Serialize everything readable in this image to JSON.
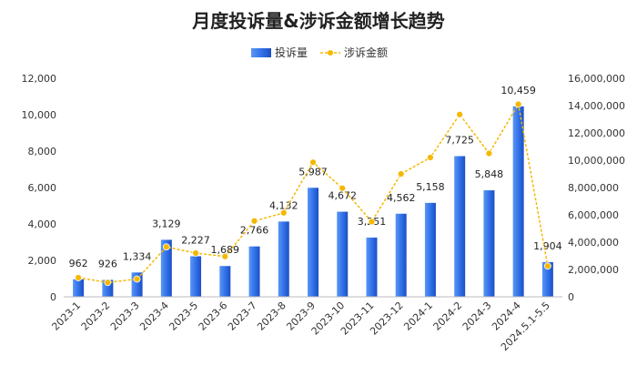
{
  "chart_data": {
    "type": "bar",
    "title": "月度投诉量&涉诉金额增长趋势",
    "legend_position": "top-center",
    "grid": false,
    "categories": [
      "2023-1",
      "2023-2",
      "2023-3",
      "2023-4",
      "2023-5",
      "2023-6",
      "2023-7",
      "2023-8",
      "2023-9",
      "2023-10",
      "2023-11",
      "2023-12",
      "2024-1",
      "2024-2",
      "2024-3",
      "2024-4",
      "2024.5.1-5.5"
    ],
    "series": [
      {
        "name": "投诉量",
        "type": "bar",
        "axis": "left",
        "color": "#2f6fe6",
        "values": [
          962,
          926,
          1334,
          3129,
          2227,
          1689,
          2766,
          4132,
          5987,
          4672,
          3251,
          4562,
          5158,
          7725,
          5848,
          10459,
          1904
        ],
        "labels": [
          "962",
          "926",
          "1,334",
          "3,129",
          "2,227",
          "1,689",
          "2,766",
          "4,132",
          "5,987",
          "4,672",
          "3,251",
          "4,562",
          "5,158",
          "7,725",
          "5,848",
          "10,459",
          "1,904"
        ]
      },
      {
        "name": "涉诉金额",
        "type": "line",
        "axis": "right",
        "color": "#f5b800",
        "line_style": "dashed",
        "values": [
          1400000,
          1050000,
          1300000,
          3650000,
          3200000,
          2950000,
          5550000,
          6150000,
          9850000,
          7950000,
          5500000,
          9000000,
          10200000,
          13350000,
          10500000,
          14100000,
          2250000
        ]
      }
    ],
    "y_left": {
      "ylim": [
        0,
        12000
      ],
      "ticks": [
        0,
        2000,
        4000,
        6000,
        8000,
        10000,
        12000
      ],
      "tick_labels": [
        "0",
        "2,000",
        "4,000",
        "6,000",
        "8,000",
        "10,000",
        "12,000"
      ]
    },
    "y_right": {
      "ylim": [
        0,
        16000000
      ],
      "ticks": [
        0,
        2000000,
        4000000,
        6000000,
        8000000,
        10000000,
        12000000,
        14000000,
        16000000
      ],
      "tick_labels": [
        "0",
        "2,000,000",
        "4,000,000",
        "6,000,000",
        "8,000,000",
        "10,000,000",
        "12,000,000",
        "14,000,000",
        "16,000,000"
      ]
    }
  }
}
